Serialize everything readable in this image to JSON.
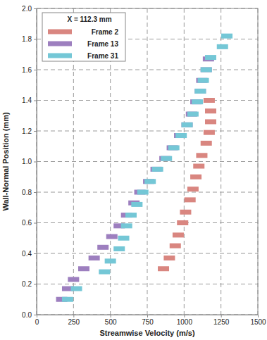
{
  "chart_data": {
    "type": "scatter",
    "annotation": "X = 112.3 mm",
    "x_label": "Streamwise Velocity (m/s)",
    "y_label": "Wall-Normal Position (mm)",
    "xlim": [
      0,
      1500
    ],
    "xticks": [
      0,
      250,
      500,
      750,
      1000,
      1250,
      1500
    ],
    "ylim": [
      0,
      2
    ],
    "yticks": [
      {
        "value": 0,
        "label": "0.0"
      },
      0.2,
      0.4,
      0.6,
      0.8,
      {
        "value": 1,
        "label": "1.0"
      },
      1.2,
      1.4,
      1.6,
      1.8,
      {
        "value": 2,
        "label": "2.0"
      }
    ],
    "grid": true,
    "legend": "upper left",
    "marker": "dash",
    "series": [
      {
        "name": "Frame 2",
        "color": "#d98680",
        "x": [
          860,
          900,
          940,
          960,
          990,
          1010,
          1040,
          1060,
          1080,
          1100,
          1120,
          1150,
          1170,
          1180,
          1180,
          1170
        ],
        "values": [
          0.3,
          0.37,
          0.45,
          0.52,
          0.6,
          0.67,
          0.75,
          0.82,
          0.9,
          0.97,
          1.04,
          1.12,
          1.19,
          1.26,
          1.33,
          1.4
        ]
      },
      {
        "name": "Frame 13",
        "color": "#9d7fbf",
        "x": [
          170,
          210,
          250,
          320,
          390,
          450,
          510,
          560,
          610,
          660,
          700,
          760,
          810,
          870,
          920,
          970,
          1020,
          1050,
          1080,
          1110,
          1120,
          1150,
          1165
        ],
        "values": [
          0.1,
          0.17,
          0.23,
          0.3,
          0.37,
          0.44,
          0.51,
          0.58,
          0.65,
          0.73,
          0.8,
          0.87,
          0.95,
          1.02,
          1.09,
          1.17,
          1.24,
          1.31,
          1.39,
          1.46,
          1.53,
          1.6,
          1.67
        ]
      },
      {
        "name": "Frame 31",
        "color": "#74c7d6",
        "x": [
          210,
          270,
          460,
          500,
          560,
          590,
          610,
          640,
          680,
          720,
          770,
          820,
          880,
          930,
          980,
          1020,
          1060,
          1090,
          1110,
          1130,
          1150,
          1180,
          1260,
          1290
        ],
        "values": [
          0.1,
          0.17,
          0.28,
          0.35,
          0.43,
          0.5,
          0.58,
          0.65,
          0.72,
          0.8,
          0.87,
          0.95,
          1.02,
          1.09,
          1.17,
          1.24,
          1.31,
          1.39,
          1.46,
          1.53,
          1.6,
          1.68,
          1.75,
          1.82
        ]
      }
    ]
  }
}
